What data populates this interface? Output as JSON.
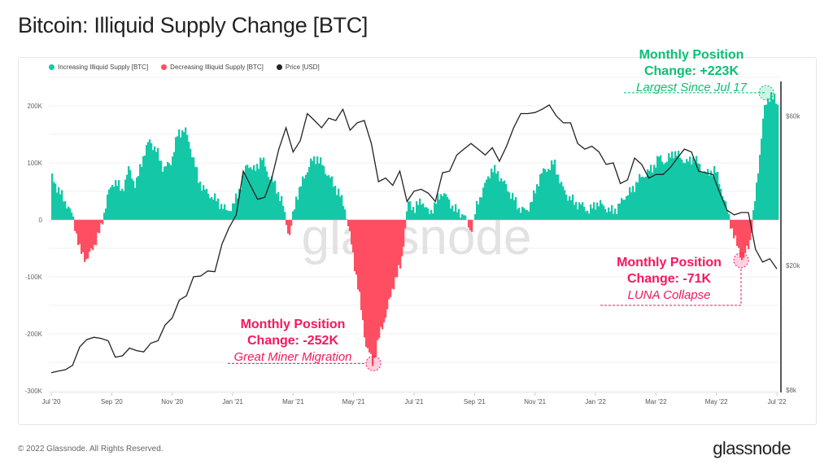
{
  "title": "Bitcoin: Illiquid Supply Change [BTC]",
  "footer": "© 2022 Glassnode. All Rights Reserved.",
  "brand": "glassnode",
  "watermark": "glassnode",
  "colors": {
    "increase": "#14c8a7",
    "decrease": "#ff4d61",
    "price": "#222222",
    "green_text": "#0bbf73",
    "red_text": "#f5175f"
  },
  "legend": [
    {
      "label": "Increasing Illiquid Supply [BTC]",
      "color": "#14c8a7"
    },
    {
      "label": "Decreasing Illiquid Supply [BTC]",
      "color": "#ff4d61"
    },
    {
      "label": "Price [USD]",
      "color": "#222222"
    }
  ],
  "annotations": [
    {
      "line1": "Monthly Position",
      "line2": "Change: +223K",
      "sub": "Largest Since Jul 17"
    },
    {
      "line1": "Monthly Position",
      "line2": "Change: -252K",
      "sub": "Great Miner Migration"
    },
    {
      "line1": "Monthly Position",
      "line2": "Change: -71K",
      "sub": "LUNA Collapse"
    }
  ],
  "chart_data": {
    "type": "bar",
    "x_range": [
      "2020-07-01",
      "2022-07-01"
    ],
    "x_ticks": [
      "Jul '20",
      "Sep '20",
      "Nov '20",
      "Jan '21",
      "Mar '21",
      "May '21",
      "Jul '21",
      "Sep '21",
      "Nov '21",
      "Jan '22",
      "Mar '22",
      "May '22",
      "Jul '22"
    ],
    "y_ticks": [
      "200K",
      "100K",
      "0",
      "-100K",
      "-200K",
      "-300K"
    ],
    "ylim": [
      -300000,
      250000
    ],
    "y2_scale": "log",
    "y2_ticks": [
      "$60k",
      "$20k",
      "$8k"
    ],
    "y2_tick_values": [
      60000,
      20000,
      8000
    ],
    "y2lim": [
      8000,
      80000
    ],
    "grid": true,
    "legend_position": "top-left",
    "supply_change_k_weekly": [
      75,
      50,
      30,
      5,
      -55,
      -70,
      -45,
      -15,
      45,
      70,
      50,
      90,
      60,
      110,
      140,
      120,
      90,
      100,
      150,
      160,
      120,
      70,
      50,
      40,
      30,
      15,
      25,
      60,
      100,
      85,
      110,
      80,
      60,
      30,
      -30,
      40,
      70,
      100,
      110,
      90,
      70,
      50,
      20,
      -50,
      -130,
      -220,
      -252,
      -200,
      -160,
      -110,
      -80,
      30,
      20,
      35,
      10,
      30,
      50,
      30,
      15,
      10,
      -20,
      30,
      60,
      90,
      80,
      60,
      40,
      20,
      15,
      40,
      80,
      90,
      100,
      60,
      40,
      30,
      25,
      15,
      30,
      25,
      15,
      20,
      40,
      50,
      70,
      80,
      90,
      110,
      100,
      120,
      110,
      100,
      110,
      90,
      80,
      90,
      50,
      5,
      -40,
      -71,
      -40,
      60,
      190,
      223,
      200
    ],
    "price_k_usd_weekly": [
      9.1,
      9.2,
      9.3,
      9.6,
      11.0,
      11.6,
      11.8,
      11.7,
      11.5,
      10.2,
      10.3,
      10.9,
      10.7,
      10.6,
      11.3,
      11.5,
      12.9,
      13.6,
      15.5,
      16.0,
      18.4,
      18.5,
      19.2,
      19.1,
      23.4,
      26.4,
      29.0,
      40.0,
      36.0,
      32.5,
      33.0,
      38.0,
      47.0,
      55.0,
      46.0,
      50.0,
      61.0,
      58.0,
      55.0,
      59.0,
      58.0,
      63.0,
      54.0,
      57.0,
      58.0,
      49.0,
      37.0,
      38.0,
      36.0,
      40.0,
      32.0,
      34.5,
      35.0,
      34.0,
      32.0,
      39.5,
      40.0,
      45.0,
      47.0,
      49.0,
      47.0,
      45.0,
      47.5,
      43.0,
      48.0,
      55.0,
      61.0,
      61.0,
      61.5,
      63.0,
      65.0,
      60.0,
      57.0,
      57.0,
      49.0,
      47.0,
      48.0,
      46.0,
      42.0,
      42.5,
      36.5,
      37.5,
      44.0,
      42.0,
      38.0,
      39.0,
      39.0,
      41.0,
      44.0,
      47.0,
      46.0,
      40.0,
      39.5,
      39.0,
      34.0,
      30.0,
      29.0,
      29.5,
      29.5,
      22.5,
      20.5,
      21.0,
      19.5
    ]
  }
}
